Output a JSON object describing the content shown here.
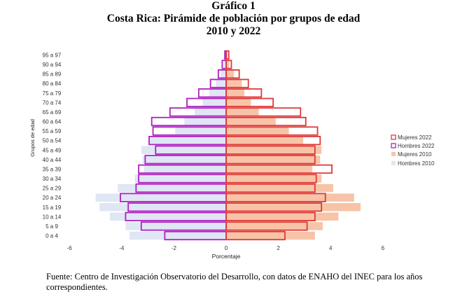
{
  "figure": {
    "label": "Gráfico 1",
    "title": "Costa Rica: Pirámide de población por grupos de edad",
    "subtitle": "2010 y 2022",
    "source_note": "Fuente: Centro de Investigación Observatorio del Desarrollo, con datos de ENAHO del INEC para los años correspondientes."
  },
  "colors": {
    "mujeres_2022": "#e03838",
    "hombres_2022": "#b020c0",
    "mujeres_2010": "#f7c4a8",
    "hombres_2010": "#dfe6f4"
  },
  "chart_data": {
    "type": "bar",
    "orientation": "horizontal",
    "title": "Costa Rica: Pirámide de población por grupos de edad",
    "xlabel": "Porcentaje",
    "ylabel": "Grupos de edad",
    "xlim": [
      -6,
      6
    ],
    "xticks": [
      -6,
      -4,
      -2,
      0,
      2,
      4,
      6
    ],
    "xtick_labels": [
      "-6",
      "-4",
      "-2",
      "0",
      "2",
      "4",
      "6"
    ],
    "legend_position": "right",
    "categories": [
      "0 a 4",
      "5 a 9",
      "10 a 14",
      "15 a 19",
      "20 a 24",
      "25 a 29",
      "30 a 34",
      "35 a 39",
      "40 a 44",
      "45 a 49",
      "50 a 54",
      "55 a 59",
      "60 a 64",
      "65 a 69",
      "70 a 74",
      "75 a 79",
      "80 a 84",
      "85 a 89",
      "90 a 94",
      "95 a 97"
    ],
    "series": [
      {
        "name": "Hombres 2010",
        "style": "fill",
        "values": [
          -3.7,
          -3.85,
          -4.45,
          -4.85,
          -5.0,
          -4.15,
          -3.5,
          -3.15,
          -3.2,
          -3.25,
          -2.95,
          -1.95,
          -1.6,
          -1.2,
          -0.9,
          -0.65,
          -0.4,
          -0.2,
          -0.08,
          -0.03
        ]
      },
      {
        "name": "Mujeres 2010",
        "style": "fill",
        "values": [
          3.4,
          3.7,
          4.3,
          5.15,
          4.9,
          4.1,
          3.65,
          3.3,
          3.6,
          3.65,
          2.95,
          2.4,
          1.9,
          1.25,
          0.95,
          0.7,
          0.6,
          0.3,
          0.12,
          0.05
        ]
      },
      {
        "name": "Hombres 2022",
        "style": "outline",
        "values": [
          -2.35,
          -3.25,
          -3.85,
          -3.75,
          -4.05,
          -3.45,
          -3.35,
          -3.35,
          -3.1,
          -2.7,
          -2.95,
          -2.8,
          -2.85,
          -2.15,
          -1.5,
          -1.05,
          -0.6,
          -0.3,
          -0.15,
          -0.05
        ]
      },
      {
        "name": "Mujeres 2022",
        "style": "outline",
        "values": [
          2.25,
          3.1,
          3.4,
          3.65,
          3.8,
          3.4,
          3.45,
          4.05,
          3.4,
          3.4,
          3.6,
          3.5,
          3.05,
          2.85,
          1.8,
          1.35,
          0.85,
          0.5,
          0.2,
          0.1
        ]
      }
    ],
    "legend": [
      "Mujeres 2022",
      "Hombres 2022",
      "Mujeres 2010",
      "Hombres 2010"
    ]
  }
}
